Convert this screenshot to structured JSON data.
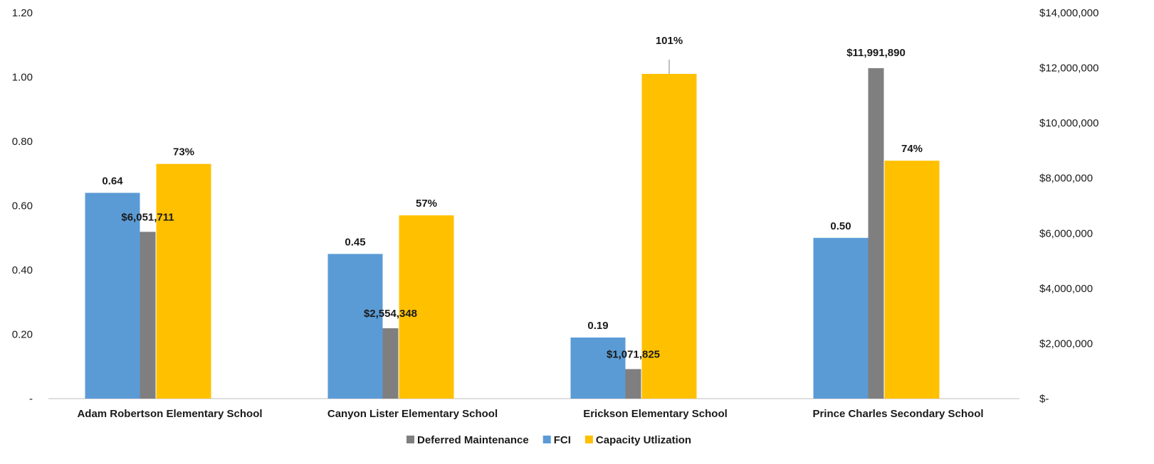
{
  "chart_data": {
    "type": "bar",
    "categories": [
      "Adam Robertson Elementary School",
      "Canyon Lister Elementary School",
      "Erickson Elementary School",
      "Prince Charles Secondary School"
    ],
    "series": [
      {
        "name": "FCI",
        "axis": "left",
        "color": "#5b9bd5",
        "values": [
          0.64,
          0.45,
          0.19,
          0.5
        ],
        "labels": [
          "0.64",
          "0.45",
          "0.19",
          "0.50"
        ]
      },
      {
        "name": "Deferred Maintenance",
        "axis": "right",
        "color": "#7f7f7f",
        "values": [
          6051711,
          2554348,
          1071825,
          11991890
        ],
        "labels": [
          "$6,051,711",
          "$2,554,348",
          "$1,071,825",
          "$11,991,890"
        ]
      },
      {
        "name": "Capacity Utlization",
        "axis": "left",
        "color": "#ffc000",
        "values": [
          0.73,
          0.57,
          1.01,
          0.74
        ],
        "labels": [
          "73%",
          "57%",
          "101%",
          "74%"
        ]
      }
    ],
    "left_axis": {
      "ylim": [
        0,
        1.2
      ],
      "ticks": [
        0,
        0.2,
        0.4,
        0.6,
        0.8,
        1.0,
        1.2
      ],
      "tick_labels": [
        "-",
        "0.20",
        "0.40",
        "0.60",
        "0.80",
        "1.00",
        "1.20"
      ]
    },
    "right_axis": {
      "ylim": [
        0,
        14000000
      ],
      "ticks": [
        0,
        2000000,
        4000000,
        6000000,
        8000000,
        10000000,
        12000000,
        14000000
      ],
      "tick_labels": [
        "$-",
        "$2,000,000",
        "$4,000,000",
        "$6,000,000",
        "$8,000,000",
        "$10,000,000",
        "$12,000,000",
        "$14,000,000"
      ]
    },
    "legend": {
      "position": "bottom",
      "entries": [
        {
          "label": "Deferred Maintenance",
          "color": "#7f7f7f"
        },
        {
          "label": "FCI",
          "color": "#5b9bd5"
        },
        {
          "label": "Capacity Utlization",
          "color": "#ffc000"
        }
      ]
    },
    "grid": false
  }
}
